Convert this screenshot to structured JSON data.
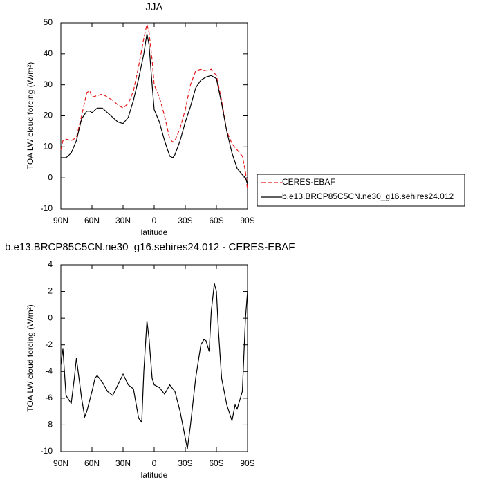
{
  "chart_data": [
    {
      "type": "line",
      "title": "JJA",
      "ylabel": "TOA LW cloud forcing (W/m²)",
      "xlabel": "latitude",
      "x": [
        90,
        88,
        85,
        80,
        75,
        70,
        65,
        62,
        60,
        55,
        50,
        45,
        40,
        35,
        30,
        25,
        20,
        15,
        10,
        7,
        5,
        2,
        0,
        -5,
        -10,
        -15,
        -18,
        -20,
        -25,
        -30,
        -35,
        -40,
        -45,
        -50,
        -55,
        -60,
        -65,
        -70,
        -75,
        -80,
        -85,
        -88,
        -90
      ],
      "series": [
        {
          "name": "CERES-EBAF",
          "color": "#e41a1c",
          "linestyle": "dashed",
          "values": [
            9,
            12,
            12.5,
            12,
            13,
            20,
            27.5,
            28,
            26,
            26.5,
            27,
            26,
            25,
            23.5,
            22.5,
            24,
            28,
            36,
            45,
            49.5,
            47,
            38,
            30,
            26,
            20,
            12.5,
            11.5,
            12,
            16,
            22,
            30,
            34.5,
            35,
            34.5,
            35,
            33,
            25,
            15,
            11,
            9,
            7,
            2,
            -4
          ]
        },
        {
          "name": "b.e13.BRCP85C5CN.ne30_g16.sehires24.012",
          "color": "#000000",
          "linestyle": "solid",
          "values": [
            6.5,
            6.5,
            6.5,
            8,
            12,
            19,
            21.5,
            21.5,
            21,
            22.5,
            22.5,
            21,
            19.5,
            18,
            17.5,
            19.5,
            25,
            32,
            40,
            46.5,
            43,
            30,
            22,
            18,
            12,
            7,
            6.5,
            7.5,
            12,
            18,
            23,
            29,
            31.5,
            32.5,
            33,
            32,
            24,
            15,
            8,
            3,
            1,
            0,
            -2
          ]
        }
      ],
      "xlim": [
        90,
        -90
      ],
      "xticks": [
        {
          "value": 90,
          "label": "90N"
        },
        {
          "value": 60,
          "label": "60N"
        },
        {
          "value": 30,
          "label": "30N"
        },
        0,
        {
          "value": -30,
          "label": "30S"
        },
        {
          "value": -60,
          "label": "60S"
        },
        {
          "value": -90,
          "label": "90S"
        }
      ],
      "ylim": [
        -10,
        50
      ],
      "yticks": [
        -10,
        0,
        10,
        20,
        30,
        40,
        50
      ],
      "legend": "right"
    },
    {
      "type": "line",
      "title": "b.e13.BRCP85C5CN.ne30_g16.sehires24.012 - CERES-EBAF",
      "ylabel": "TOA LW cloud forcing (W/m²)",
      "xlabel": "latitude",
      "x": [
        90,
        88,
        85,
        80,
        77,
        75,
        70,
        67,
        65,
        60,
        57,
        55,
        50,
        45,
        40,
        35,
        30,
        25,
        20,
        15,
        12,
        10,
        7,
        5,
        2,
        0,
        -5,
        -10,
        -15,
        -20,
        -25,
        -30,
        -32,
        -35,
        -40,
        -45,
        -48,
        -50,
        -53,
        -55,
        -58,
        -60,
        -62,
        -65,
        -70,
        -75,
        -78,
        -80,
        -85,
        -88,
        -90
      ],
      "series": [
        {
          "color": "#000000",
          "linestyle": "solid",
          "values": [
            -3.5,
            -2.3,
            -5.8,
            -6.4,
            -4.5,
            -3,
            -6,
            -7.4,
            -7,
            -5.5,
            -4.5,
            -4.3,
            -4.8,
            -5.5,
            -5.8,
            -5,
            -4.2,
            -5,
            -5.3,
            -7.5,
            -7.8,
            -4,
            -0.2,
            -1.5,
            -4.5,
            -5,
            -5.2,
            -5.7,
            -5,
            -5.5,
            -7,
            -9,
            -9.8,
            -8,
            -4.5,
            -2,
            -1.6,
            -1.7,
            -2.5,
            0.5,
            2.6,
            2,
            -1,
            -4.5,
            -6.5,
            -7.7,
            -6.5,
            -6.8,
            -5.5,
            0,
            2
          ]
        }
      ],
      "xlim": [
        90,
        -90
      ],
      "xticks": [
        {
          "value": 90,
          "label": "90N"
        },
        {
          "value": 60,
          "label": "60N"
        },
        {
          "value": 30,
          "label": "30N"
        },
        0,
        {
          "value": -30,
          "label": "30S"
        },
        {
          "value": -60,
          "label": "60S"
        },
        {
          "value": -90,
          "label": "90S"
        }
      ],
      "ylim": [
        -10,
        4
      ],
      "yticks": [
        -10,
        -8,
        -6,
        -4,
        -2,
        0,
        2,
        4
      ]
    }
  ]
}
